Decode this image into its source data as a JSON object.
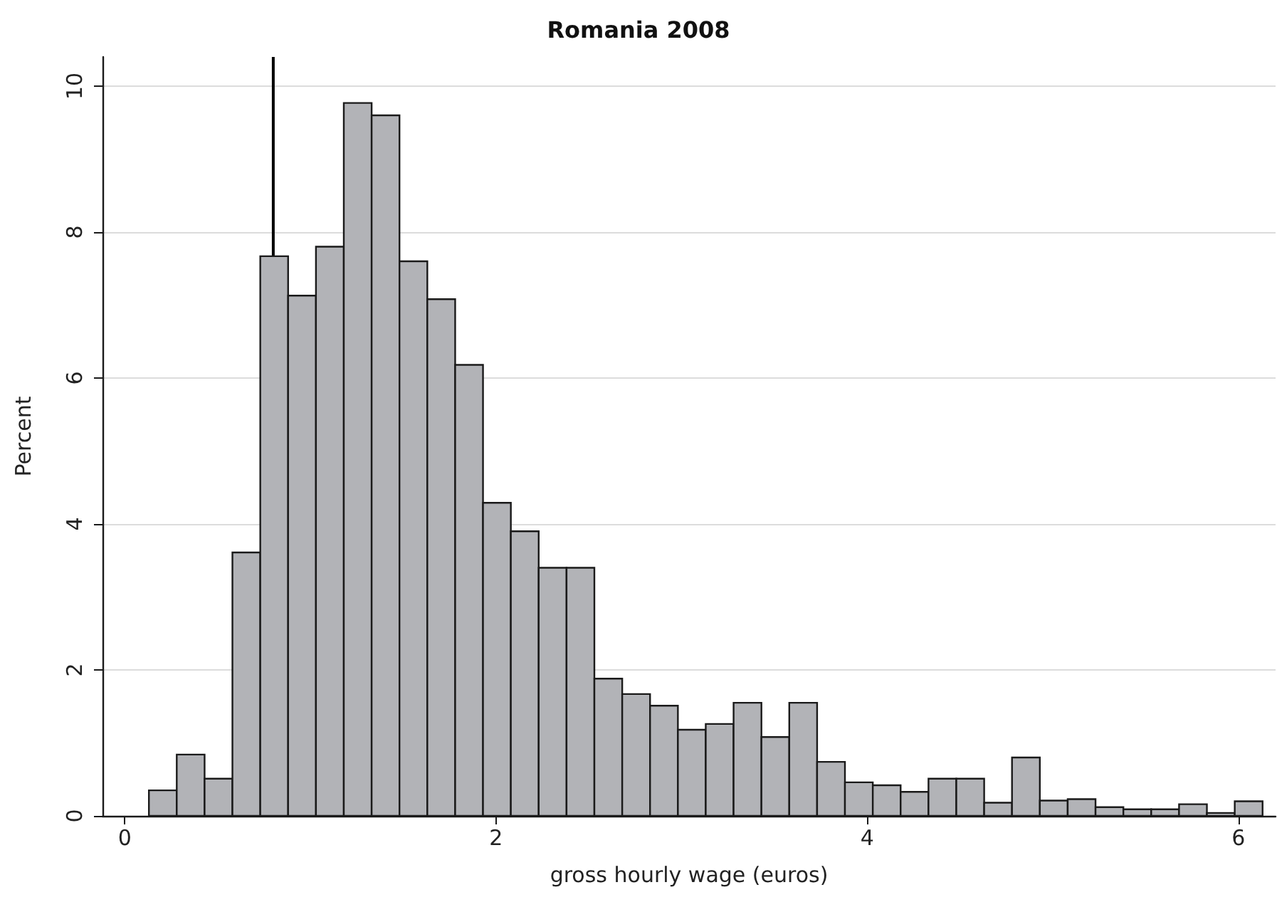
{
  "chart_data": {
    "type": "histogram",
    "title": "Romania 2008",
    "xlabel": "gross hourly wage (euros)",
    "ylabel": "Percent",
    "bins": [
      0.13,
      0.28,
      0.43,
      0.58,
      0.73,
      0.88,
      1.03,
      1.18,
      1.33,
      1.48,
      1.63,
      1.78,
      1.93,
      2.08,
      2.23,
      2.38,
      2.53,
      2.68,
      2.83,
      2.98,
      3.13,
      3.28,
      3.43,
      3.58,
      3.73,
      3.88,
      4.03,
      4.18,
      4.33,
      4.48,
      4.63,
      4.78,
      4.93,
      5.08,
      5.23,
      5.38,
      5.53,
      5.68,
      5.83,
      5.98,
      6.13
    ],
    "values": [
      0.35,
      0.84,
      0.51,
      3.61,
      7.67,
      7.13,
      7.8,
      9.77,
      9.6,
      7.6,
      7.08,
      6.18,
      4.29,
      3.9,
      3.4,
      3.4,
      1.88,
      1.67,
      1.51,
      1.18,
      1.26,
      1.55,
      1.08,
      1.55,
      0.74,
      0.46,
      0.42,
      0.33,
      0.51,
      0.51,
      0.18,
      0.8,
      0.21,
      0.23,
      0.12,
      0.09,
      0.09,
      0.16,
      0.04,
      0.2
    ],
    "color": "#b2b3b7",
    "xlim": [
      -0.12,
      6.2
    ],
    "xticks": [
      0,
      2,
      4,
      6
    ],
    "ylim": [
      0,
      10.4
    ],
    "yticks": [
      0,
      2,
      4,
      6,
      8,
      10
    ],
    "grid": "y",
    "ref_lines": [
      {
        "axis": "x",
        "value": 0.8,
        "label": null,
        "color": "#000000"
      }
    ]
  }
}
